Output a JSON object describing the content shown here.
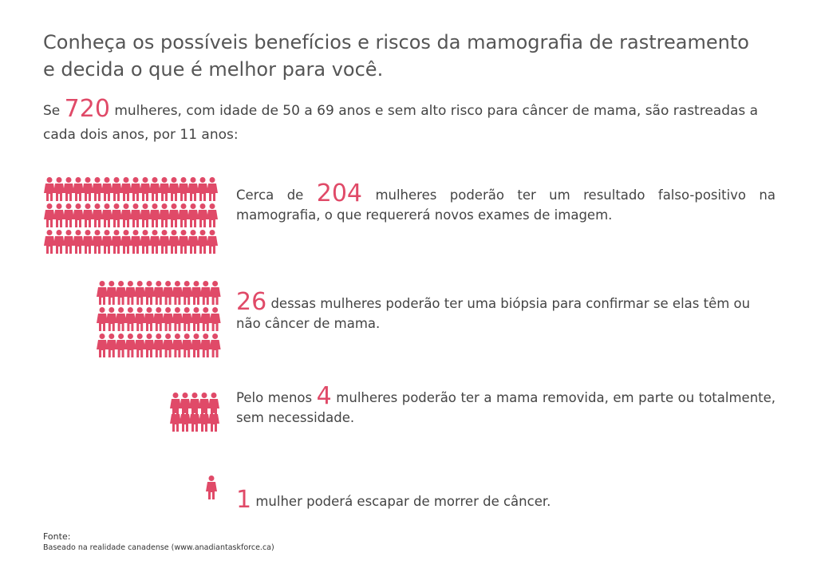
{
  "title": "Conheça os possíveis benefícios e riscos da mamografia de rastreamento e decida o que é melhor para você.",
  "intro": {
    "prefix": "Se",
    "number": "720",
    "suffix": "mulheres, com idade de 50 a 69 anos e sem alto risco para câncer de mama, são rastreadas a cada dois anos, por 11 anos:"
  },
  "rows": [
    {
      "prefix": "Cerca de",
      "number": "204",
      "suffix": "mulheres poderão ter um resultado falso-positivo na mamografia, o que requererá novos exames de imagem."
    },
    {
      "prefix": "",
      "number": "26",
      "suffix": "dessas mulheres poderão ter uma biópsia para confirmar se elas têm ou não câncer de mama."
    },
    {
      "prefix": "Pelo menos",
      "number": "4",
      "suffix": "mulheres poderão ter a mama removida, em parte ou totalmente, sem necessidade."
    },
    {
      "prefix": "",
      "number": "1",
      "suffix": "mulher poderá escapar de morrer de câncer."
    }
  ],
  "source": {
    "label": "Fonte:",
    "text": "Baseado na realidade canadense (www.anadiantaskforce.ca)"
  },
  "colors": {
    "accent": "#e04a68",
    "text": "#444444"
  },
  "icon": "woman-figure-icon"
}
